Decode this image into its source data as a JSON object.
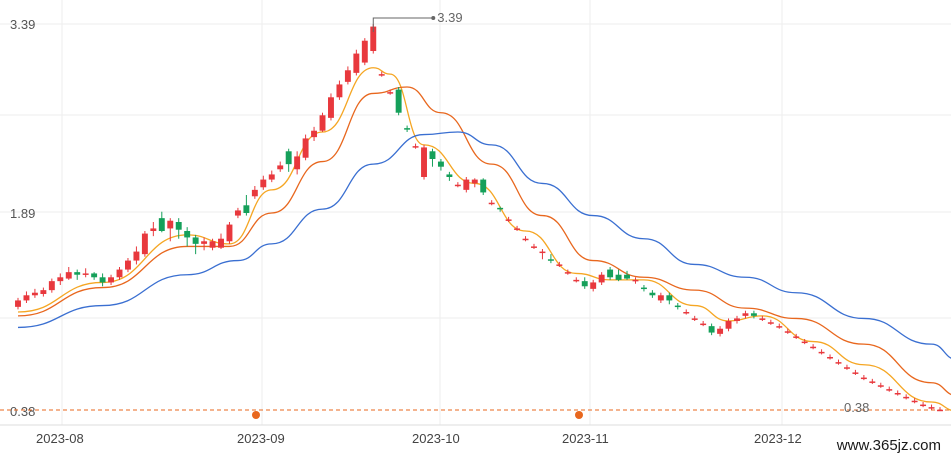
{
  "chart_data": {
    "type": "candlestick",
    "y_axis_ticks": [
      "3.39",
      "1.89",
      "0.38"
    ],
    "x_axis_ticks": [
      "2023-08",
      "2023-09",
      "2023-10",
      "2023-11",
      "2023-12"
    ],
    "max_label": "3.39",
    "min_label": "0.38",
    "ylim": [
      0.38,
      3.39
    ],
    "colors": {
      "up": "#e8383d",
      "down": "#15a05a",
      "ma1": "#f5a623",
      "ma2": "#e8671e",
      "ma3": "#3a6fd1",
      "ref_line": "#e8671e"
    },
    "candles": [
      [
        1.19,
        1.24,
        1.26,
        1.17
      ],
      [
        1.24,
        1.28,
        1.31,
        1.22
      ],
      [
        1.28,
        1.3,
        1.33,
        1.26
      ],
      [
        1.29,
        1.32,
        1.34,
        1.27
      ],
      [
        1.32,
        1.39,
        1.41,
        1.3
      ],
      [
        1.39,
        1.42,
        1.45,
        1.36
      ],
      [
        1.41,
        1.46,
        1.5,
        1.4
      ],
      [
        1.46,
        1.44,
        1.48,
        1.4
      ],
      [
        1.44,
        1.45,
        1.49,
        1.42
      ],
      [
        1.45,
        1.42,
        1.46,
        1.4
      ],
      [
        1.42,
        1.38,
        1.45,
        1.35
      ],
      [
        1.38,
        1.42,
        1.44,
        1.36
      ],
      [
        1.42,
        1.48,
        1.5,
        1.4
      ],
      [
        1.48,
        1.55,
        1.57,
        1.46
      ],
      [
        1.55,
        1.62,
        1.66,
        1.52
      ],
      [
        1.6,
        1.76,
        1.78,
        1.58
      ],
      [
        1.78,
        1.8,
        1.85,
        1.74
      ],
      [
        1.88,
        1.78,
        1.93,
        1.77
      ],
      [
        1.8,
        1.86,
        1.88,
        1.7
      ],
      [
        1.85,
        1.79,
        1.88,
        1.72
      ],
      [
        1.78,
        1.73,
        1.81,
        1.66
      ],
      [
        1.73,
        1.68,
        1.75,
        1.6
      ],
      [
        1.68,
        1.7,
        1.73,
        1.63
      ],
      [
        1.65,
        1.7,
        1.72,
        1.63
      ],
      [
        1.65,
        1.72,
        1.76,
        1.64
      ],
      [
        1.7,
        1.83,
        1.85,
        1.68
      ],
      [
        1.9,
        1.94,
        1.96,
        1.88
      ],
      [
        1.98,
        1.92,
        2.06,
        1.9
      ],
      [
        2.05,
        2.1,
        2.13,
        2.03
      ],
      [
        2.12,
        2.18,
        2.21,
        2.1
      ],
      [
        2.18,
        2.22,
        2.25,
        2.16
      ],
      [
        2.26,
        2.29,
        2.32,
        2.24
      ],
      [
        2.4,
        2.3,
        2.42,
        2.24
      ],
      [
        2.26,
        2.36,
        2.4,
        2.22
      ],
      [
        2.35,
        2.5,
        2.53,
        2.33
      ],
      [
        2.51,
        2.56,
        2.59,
        2.48
      ],
      [
        2.56,
        2.68,
        2.7,
        2.55
      ],
      [
        2.66,
        2.82,
        2.85,
        2.64
      ],
      [
        2.82,
        2.92,
        2.95,
        2.8
      ],
      [
        2.94,
        3.03,
        3.06,
        2.92
      ],
      [
        3.01,
        3.16,
        3.19,
        2.99
      ],
      [
        3.09,
        3.26,
        3.28,
        3.07
      ],
      [
        3.18,
        3.37,
        3.39,
        3.16
      ],
      [
        3.0,
        3.0,
        3.02,
        2.98
      ],
      [
        2.86,
        2.86,
        2.88,
        2.84
      ],
      [
        2.88,
        2.7,
        2.9,
        2.68
      ],
      [
        2.58,
        2.57,
        2.6,
        2.55
      ],
      [
        2.44,
        2.44,
        2.46,
        2.42
      ],
      [
        2.2,
        2.43,
        2.45,
        2.18
      ],
      [
        2.4,
        2.34,
        2.42,
        2.28
      ],
      [
        2.32,
        2.28,
        2.34,
        2.25
      ],
      [
        2.22,
        2.2,
        2.24,
        2.17
      ],
      [
        2.14,
        2.14,
        2.16,
        2.12
      ],
      [
        2.1,
        2.18,
        2.2,
        2.08
      ],
      [
        2.15,
        2.18,
        2.19,
        2.12
      ],
      [
        2.18,
        2.08,
        2.19,
        2.06
      ],
      [
        2.0,
        2.0,
        2.02,
        1.98
      ],
      [
        1.96,
        1.95,
        1.97,
        1.93
      ],
      [
        1.87,
        1.87,
        1.89,
        1.85
      ],
      [
        1.8,
        1.8,
        1.82,
        1.78
      ],
      [
        1.72,
        1.72,
        1.74,
        1.7
      ],
      [
        1.66,
        1.66,
        1.68,
        1.64
      ],
      [
        1.62,
        1.62,
        1.64,
        1.56
      ],
      [
        1.56,
        1.55,
        1.6,
        1.53
      ],
      [
        1.52,
        1.52,
        1.54,
        1.5
      ],
      [
        1.46,
        1.46,
        1.48,
        1.44
      ],
      [
        1.4,
        1.4,
        1.42,
        1.38
      ],
      [
        1.39,
        1.35,
        1.42,
        1.33
      ],
      [
        1.33,
        1.38,
        1.4,
        1.31
      ],
      [
        1.38,
        1.44,
        1.46,
        1.36
      ],
      [
        1.48,
        1.42,
        1.5,
        1.4
      ],
      [
        1.44,
        1.4,
        1.48,
        1.39
      ],
      [
        1.44,
        1.41,
        1.47,
        1.4
      ],
      [
        1.4,
        1.4,
        1.42,
        1.37
      ],
      [
        1.34,
        1.33,
        1.36,
        1.31
      ],
      [
        1.3,
        1.28,
        1.32,
        1.26
      ],
      [
        1.24,
        1.28,
        1.3,
        1.22
      ],
      [
        1.28,
        1.24,
        1.3,
        1.21
      ],
      [
        1.2,
        1.19,
        1.22,
        1.17
      ],
      [
        1.15,
        1.15,
        1.17,
        1.13
      ],
      [
        1.1,
        1.1,
        1.12,
        1.08
      ],
      [
        1.06,
        1.06,
        1.08,
        1.04
      ],
      [
        1.04,
        0.99,
        1.06,
        0.97
      ],
      [
        0.98,
        1.02,
        1.04,
        0.96
      ],
      [
        1.02,
        1.08,
        1.1,
        1.0
      ],
      [
        1.08,
        1.1,
        1.12,
        1.06
      ],
      [
        1.12,
        1.14,
        1.16,
        1.1
      ],
      [
        1.14,
        1.12,
        1.16,
        1.1
      ],
      [
        1.1,
        1.1,
        1.12,
        1.08
      ],
      [
        1.07,
        1.07,
        1.09,
        1.05
      ],
      [
        1.04,
        1.04,
        1.06,
        1.02
      ],
      [
        1.0,
        1.0,
        1.02,
        0.98
      ],
      [
        0.96,
        0.96,
        0.98,
        0.94
      ],
      [
        0.92,
        0.92,
        0.94,
        0.9
      ],
      [
        0.88,
        0.88,
        0.9,
        0.86
      ],
      [
        0.84,
        0.84,
        0.86,
        0.82
      ],
      [
        0.8,
        0.8,
        0.82,
        0.78
      ],
      [
        0.76,
        0.76,
        0.78,
        0.74
      ],
      [
        0.72,
        0.72,
        0.74,
        0.7
      ],
      [
        0.68,
        0.68,
        0.7,
        0.66
      ],
      [
        0.64,
        0.64,
        0.66,
        0.62
      ],
      [
        0.61,
        0.61,
        0.63,
        0.59
      ],
      [
        0.58,
        0.58,
        0.6,
        0.56
      ],
      [
        0.55,
        0.55,
        0.57,
        0.53
      ],
      [
        0.52,
        0.52,
        0.54,
        0.5
      ],
      [
        0.49,
        0.49,
        0.51,
        0.47
      ],
      [
        0.46,
        0.46,
        0.48,
        0.44
      ],
      [
        0.43,
        0.43,
        0.45,
        0.41
      ],
      [
        0.41,
        0.41,
        0.43,
        0.39
      ],
      [
        0.39,
        0.39,
        0.41,
        0.38
      ]
    ],
    "moving_averages": [
      {
        "name": "ma1",
        "color": "#f5a623",
        "values": [
          [
            0,
            1.15
          ],
          [
            10,
            1.38
          ],
          [
            20,
            1.75
          ],
          [
            25,
            1.68
          ],
          [
            30,
            2.1
          ],
          [
            36,
            2.55
          ],
          [
            42,
            3.05
          ],
          [
            44,
            3.0
          ],
          [
            48,
            2.45
          ],
          [
            54,
            2.15
          ],
          [
            60,
            1.78
          ],
          [
            66,
            1.45
          ],
          [
            70,
            1.4
          ],
          [
            74,
            1.4
          ],
          [
            80,
            1.2
          ],
          [
            84,
            1.08
          ],
          [
            88,
            1.12
          ],
          [
            94,
            0.92
          ],
          [
            100,
            0.74
          ],
          [
            108,
            0.45
          ],
          [
            111,
            0.38
          ]
        ]
      },
      {
        "name": "ma2",
        "color": "#e8671e",
        "values": [
          [
            0,
            1.12
          ],
          [
            10,
            1.34
          ],
          [
            20,
            1.66
          ],
          [
            25,
            1.66
          ],
          [
            30,
            1.92
          ],
          [
            36,
            2.32
          ],
          [
            42,
            2.85
          ],
          [
            46,
            2.9
          ],
          [
            50,
            2.7
          ],
          [
            56,
            2.3
          ],
          [
            62,
            1.9
          ],
          [
            68,
            1.55
          ],
          [
            74,
            1.42
          ],
          [
            80,
            1.32
          ],
          [
            86,
            1.18
          ],
          [
            92,
            1.1
          ],
          [
            100,
            0.9
          ],
          [
            108,
            0.6
          ],
          [
            111,
            0.5
          ]
        ]
      },
      {
        "name": "ma3",
        "color": "#3a6fd1",
        "values": [
          [
            0,
            1.03
          ],
          [
            10,
            1.2
          ],
          [
            20,
            1.44
          ],
          [
            26,
            1.55
          ],
          [
            30,
            1.68
          ],
          [
            36,
            1.95
          ],
          [
            42,
            2.3
          ],
          [
            48,
            2.53
          ],
          [
            52,
            2.55
          ],
          [
            56,
            2.45
          ],
          [
            62,
            2.15
          ],
          [
            68,
            1.9
          ],
          [
            74,
            1.72
          ],
          [
            80,
            1.52
          ],
          [
            86,
            1.42
          ],
          [
            92,
            1.3
          ],
          [
            100,
            1.1
          ],
          [
            108,
            0.9
          ],
          [
            111,
            0.78
          ]
        ]
      }
    ]
  },
  "watermark": "www.365jz.com"
}
